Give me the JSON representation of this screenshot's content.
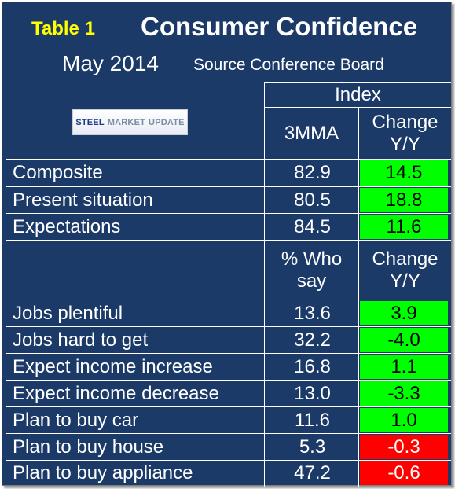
{
  "header": {
    "table_label": "Table 1",
    "title": "Consumer Confidence",
    "date": "May 2014",
    "source": "Source Conference Board"
  },
  "logo": {
    "part1": "STEEL",
    "part2": "MARKET",
    "part3": "UPDATE"
  },
  "index_section": {
    "group_header": "Index",
    "col1_header": "3MMA",
    "col2_header_line1": "Change",
    "col2_header_line2": "Y/Y",
    "rows": [
      {
        "label": "Composite",
        "value": "82.9",
        "change": "14.5",
        "status": "positive"
      },
      {
        "label": "Present situation",
        "value": "80.5",
        "change": "18.8",
        "status": "positive"
      },
      {
        "label": "Expectations",
        "value": "84.5",
        "change": "11.6",
        "status": "positive"
      }
    ]
  },
  "survey_section": {
    "col1_header_line1": "% Who",
    "col1_header_line2": "say",
    "col2_header_line1": "Change",
    "col2_header_line2": "Y/Y",
    "rows": [
      {
        "label": "Jobs plentiful",
        "value": "13.6",
        "change": "3.9",
        "status": "positive"
      },
      {
        "label": "Jobs hard to get",
        "value": "32.2",
        "change": "-4.0",
        "status": "positive"
      },
      {
        "label": "Expect income increase",
        "value": "16.8",
        "change": "1.1",
        "status": "positive"
      },
      {
        "label": "Expect income decrease",
        "value": "13.0",
        "change": "-3.3",
        "status": "positive"
      },
      {
        "label": "Plan to buy car",
        "value": "11.6",
        "change": "1.0",
        "status": "positive"
      },
      {
        "label": "Plan to buy house",
        "value": "5.3",
        "change": "-0.3",
        "status": "negative"
      },
      {
        "label": "Plan to buy appliance",
        "value": "47.2",
        "change": "-0.6",
        "status": "negative"
      }
    ]
  },
  "colors": {
    "background": "#1b3a68",
    "positive": "#00ff00",
    "negative": "#ff0000",
    "table_label": "#ffff00"
  }
}
